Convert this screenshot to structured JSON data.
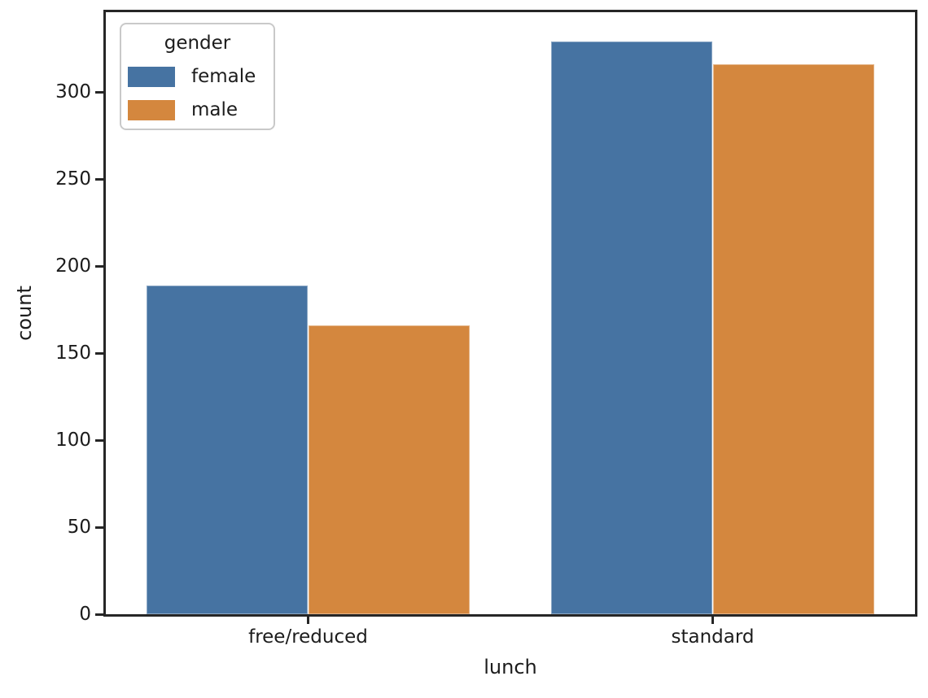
{
  "figure": {
    "background_color": "#ffffff",
    "spine_color": "#262626",
    "text_color": "#1c1c1c",
    "legend_border_color": "#c9c9c9"
  },
  "chart_data": {
    "type": "bar",
    "title": "",
    "xlabel": "lunch",
    "ylabel": "count",
    "categories": [
      "free/reduced",
      "standard"
    ],
    "series": [
      {
        "name": "female",
        "color": "#4673A2",
        "values": [
          189,
          329
        ]
      },
      {
        "name": "male",
        "color": "#D4873E",
        "values": [
          166,
          316
        ]
      }
    ],
    "ylim": [
      0,
      346
    ],
    "yticks": [
      0,
      50,
      100,
      150,
      200,
      250,
      300
    ],
    "grid": false,
    "legend": {
      "title": "gender",
      "position": "upper left"
    }
  }
}
